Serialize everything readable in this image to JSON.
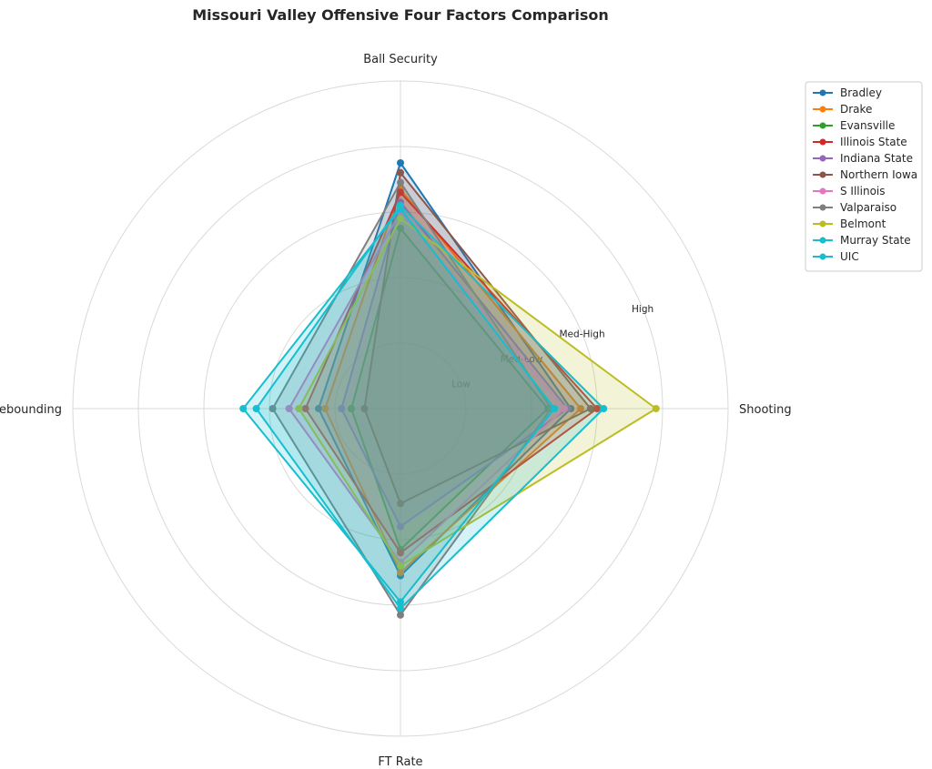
{
  "chart_data": {
    "type": "radar",
    "title": "Missouri Valley Offensive Four Factors Comparison",
    "axes": [
      "Ball Security",
      "Shooting",
      "FT Rate",
      "Off Rebounding"
    ],
    "ring_labels": [
      "Low",
      "Med-Low",
      "Med-High",
      "High"
    ],
    "r_range": [
      0,
      5
    ],
    "grid": true,
    "legend_position": "upper-right",
    "series": [
      {
        "name": "Bradley",
        "color": "#1f77b4",
        "values": [
          3.75,
          2.6,
          2.55,
          1.25
        ]
      },
      {
        "name": "Drake",
        "color": "#ff7f0e",
        "values": [
          3.35,
          2.75,
          2.5,
          1.15
        ]
      },
      {
        "name": "Evansville",
        "color": "#2ca02c",
        "values": [
          2.75,
          2.25,
          2.15,
          0.75
        ]
      },
      {
        "name": "Illinois State",
        "color": "#d62728",
        "values": [
          3.3,
          3.0,
          2.2,
          1.45
        ]
      },
      {
        "name": "Indiana State",
        "color": "#9467bd",
        "values": [
          3.15,
          2.55,
          1.8,
          0.9
        ]
      },
      {
        "name": "Northern Iowa",
        "color": "#8c564b",
        "values": [
          3.6,
          2.9,
          1.45,
          0.55
        ]
      },
      {
        "name": "S Illinois",
        "color": "#e377c2",
        "values": [
          3.0,
          2.5,
          2.35,
          1.7
        ]
      },
      {
        "name": "Valparaiso",
        "color": "#7f7f7f",
        "values": [
          3.45,
          2.3,
          3.15,
          1.95
        ]
      },
      {
        "name": "Belmont",
        "color": "#bcbd22",
        "values": [
          2.9,
          3.9,
          2.4,
          1.55
        ]
      },
      {
        "name": "Murray State",
        "color": "#17becf",
        "values": [
          3.05,
          2.35,
          2.95,
          2.4
        ]
      },
      {
        "name": "UIC",
        "color": "#17becf",
        "values": [
          3.1,
          3.1,
          3.05,
          2.2
        ]
      }
    ]
  }
}
